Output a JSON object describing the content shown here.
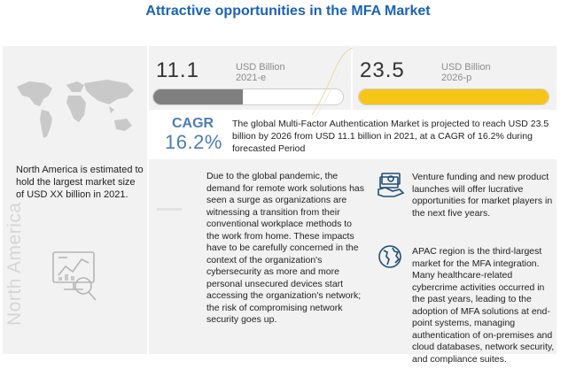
{
  "title": "Attractive opportunities in the MFA  Market",
  "left_panel": {
    "region_text": "North America is estimated to hold the largest market size of USD XX billion in 2021.",
    "region_label": "North America"
  },
  "stat_current": {
    "value": "11.1",
    "unit": "USD Billion",
    "year": "2021-e",
    "bar_fraction": 0.47,
    "bar_color": "#7f7f7f"
  },
  "stat_forecast": {
    "value": "23.5",
    "unit": "USD Billion",
    "year": "2026-p",
    "bar_fraction": 1.0,
    "bar_color": "#f5c518"
  },
  "cagr": {
    "label": "CAGR",
    "value": "16.2%",
    "text": "The global Multi-Factor Authentication Market is projected to reach USD 23.5 billion by 2026 from USD 11.1 billion in 2021, at a CAGR of 16.2% during forecasted Period"
  },
  "insights": {
    "pandemic": "Due to the global pandemic, the demand for remote work solutions has seen a surge as organizations are witnessing a transition from their conventional workplace methods to the work from home. These impacts have to be carefully concerned in the context of the organization's cybersecurity as more and more personal unsecured devices start accessing the organization's network; the risk of compromising network security goes up.",
    "venture": "Venture funding and new product launches will offer lucrative opportunities for market players in the next five years.",
    "apac": "APAC region is the third-largest market for the MFA integration. Many healthcare-related cybercrime activities occurred in the past years, leading to the adoption of MFA solutions at end-point systems, managing authentication of on-premises and cloud databases, network security, and compliance suites."
  },
  "colors": {
    "title": "#1b63b5",
    "cagr": "#4c7db7",
    "panel": "#f2f2f2",
    "accent_yellow": "#f5c518"
  },
  "icons": [
    "world-map-icon",
    "analytics-icon",
    "money-icon",
    "globe-icon"
  ]
}
